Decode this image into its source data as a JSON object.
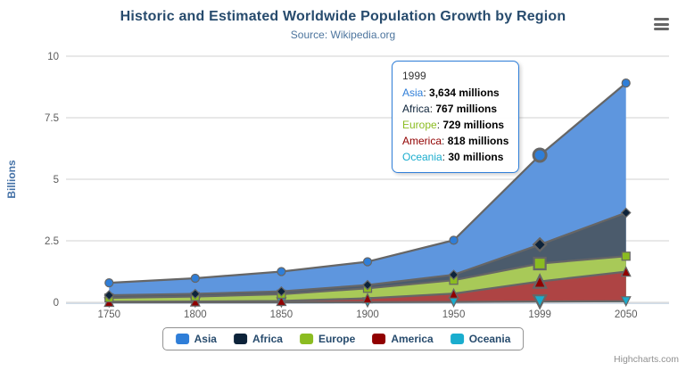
{
  "chart_data": {
    "type": "area",
    "stacking": "normal",
    "title": "Historic and Estimated Worldwide Population Growth by Region",
    "subtitle": "Source: Wikipedia.org",
    "categories": [
      "1750",
      "1800",
      "1850",
      "1900",
      "1950",
      "1999",
      "2050"
    ],
    "xlabel": "",
    "ylabel": "Billions",
    "ylim": [
      0,
      10
    ],
    "yticks": [
      "0",
      "2.5",
      "5",
      "7.5",
      "10"
    ],
    "grid": "horizontal",
    "legend_position": "bottom",
    "value_unit": "millions",
    "series": [
      {
        "name": "Asia",
        "color": "#2f7ed8",
        "fill": "#5e96de",
        "marker": "circle",
        "values_millions": [
          502,
          635,
          809,
          947,
          1402,
          3634,
          5268
        ]
      },
      {
        "name": "Africa",
        "color": "#0d233a",
        "fill": "#4b5b6c",
        "marker": "diamond",
        "values_millions": [
          106,
          107,
          111,
          133,
          221,
          767,
          1766
        ]
      },
      {
        "name": "Europe",
        "color": "#8bbc21",
        "fill": "#a8c958",
        "marker": "square",
        "values_millions": [
          163,
          203,
          276,
          408,
          547,
          729,
          628
        ]
      },
      {
        "name": "America",
        "color": "#910000",
        "fill": "#ae4444",
        "marker": "triangle",
        "values_millions": [
          18,
          31,
          54,
          156,
          339,
          818,
          1201
        ]
      },
      {
        "name": "Oceania",
        "color": "#1aadce",
        "fill": "#55c1d8",
        "marker": "triangle-down",
        "values_millions": [
          2,
          2,
          2,
          6,
          13,
          30,
          46
        ]
      }
    ],
    "hover": {
      "category": "1999",
      "category_index": 5
    }
  },
  "tooltip": {
    "header": "1999",
    "border_color": "#2f7ed8",
    "rows": [
      {
        "name": "Asia",
        "color": "#2f7ed8",
        "value": "3,634 millions"
      },
      {
        "name": "Africa",
        "color": "#0d233a",
        "value": "767 millions"
      },
      {
        "name": "Europe",
        "color": "#8bbc21",
        "value": "729 millions"
      },
      {
        "name": "America",
        "color": "#910000",
        "value": "818 millions"
      },
      {
        "name": "Oceania",
        "color": "#1aadce",
        "value": "30 millions"
      }
    ]
  },
  "credits": {
    "label": "Highcharts.com"
  },
  "colors": {
    "grid_line": "#d2d2d2",
    "axis_line": "#c0d0e0",
    "area_outline": "#666666",
    "tick_label": "#5c5c5c",
    "y_title": "#4572a7"
  }
}
